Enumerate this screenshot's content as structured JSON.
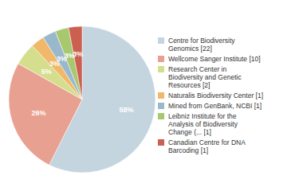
{
  "chart_data": {
    "type": "pie",
    "categories": [
      "Centre for Biodiversity\nGenomics [22]",
      "Wellcome Sanger Institute [10]",
      "Research Center in\nBiodiversity and Genetic\nResources [2]",
      "Naturalis Biodiversity Center [1]",
      "Mined from GenBank, NCBI [1]",
      "Leibniz Institute for the\nAnalysis of Biodiversity\nChange (... [1]",
      "Canadian Centre for DNA\nBarcoding [1]"
    ],
    "values": [
      58,
      26,
      5,
      3,
      3,
      3,
      3
    ],
    "value_labels": [
      "58%",
      "26%",
      "5%",
      "3%",
      "3%",
      "3%",
      "3%"
    ],
    "colors": [
      "#c5d5e0",
      "#e8a090",
      "#d4de8c",
      "#f0b868",
      "#9ab8cc",
      "#a8c870",
      "#cc6050"
    ],
    "data_labels": true,
    "legend": "right"
  }
}
